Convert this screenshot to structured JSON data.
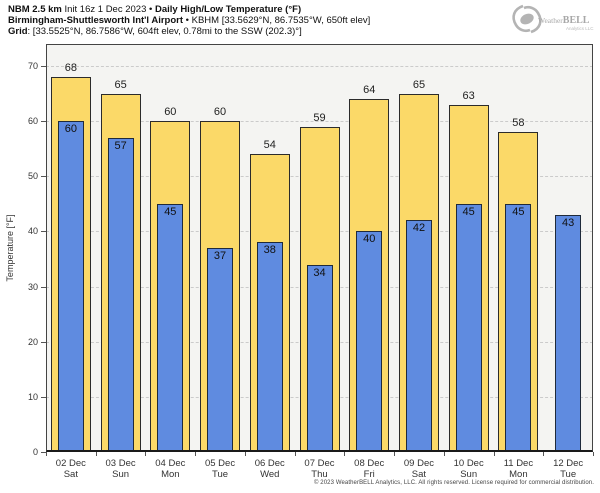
{
  "header": {
    "model_bold": "NBM 2.5 km",
    "init_text": " Init 16z 1 Dec 2023 • ",
    "product_bold": "Daily High/Low Temperature (°F)",
    "station_bold": "Birmingham-Shuttlesworth Int'l Airport",
    "station_info": " • KBHM [33.5629°N, 86.7535°W, 650ft elev]",
    "grid_bold": "Grid",
    "grid_info": ": [33.5525°N, 86.7586°W, 604ft elev, 0.78mi to the SSW (202.3)°]"
  },
  "logo": {
    "name_small": "Weather",
    "name_big": "BELL",
    "subtext": "Analytics LLC"
  },
  "footer": {
    "copyright": "© 2023 WeatherBELL Analytics, LLC. All rights reserved. License required for commercial distribution."
  },
  "chart_data": {
    "type": "bar",
    "title": "NBM 2.5 km Init 16z 1 Dec 2023 • Daily High/Low Temperature (°F)",
    "subtitle": "Birmingham-Shuttlesworth Int'l Airport • KBHM [33.5629°N, 86.7535°W, 650ft elev]",
    "ylabel": "Temperature [°F]",
    "ylim": [
      0,
      74
    ],
    "yticks": [
      0,
      10,
      20,
      30,
      40,
      50,
      60,
      70
    ],
    "grid": "horizontal-dashed",
    "legend": "none",
    "categories_date": [
      "02 Dec",
      "03 Dec",
      "04 Dec",
      "05 Dec",
      "06 Dec",
      "07 Dec",
      "08 Dec",
      "09 Dec",
      "10 Dec",
      "11 Dec",
      "12 Dec"
    ],
    "categories_day": [
      "Sat",
      "Sun",
      "Mon",
      "Tue",
      "Wed",
      "Thu",
      "Fri",
      "Sat",
      "Sun",
      "Mon",
      "Tue"
    ],
    "series": [
      {
        "name": "Daily High",
        "color": "#fbd968",
        "border": "#2b2b2b",
        "values": [
          68,
          65,
          60,
          60,
          54,
          59,
          64,
          65,
          63,
          58,
          null
        ]
      },
      {
        "name": "Daily Low",
        "color": "#5f8be0",
        "border": "#1f2a3a",
        "values": [
          60,
          57,
          45,
          37,
          38,
          34,
          40,
          42,
          45,
          45,
          43
        ]
      }
    ],
    "colors": {
      "plot_background": "#f4f4f2",
      "gridline": "#cbcbcb",
      "axis": "#1a1a1a"
    }
  }
}
